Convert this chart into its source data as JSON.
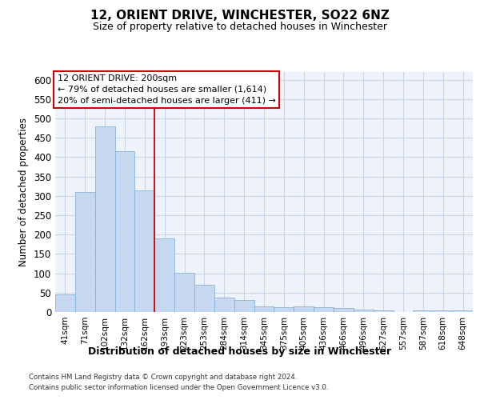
{
  "title1": "12, ORIENT DRIVE, WINCHESTER, SO22 6NZ",
  "title2": "Size of property relative to detached houses in Winchester",
  "xlabel": "Distribution of detached houses by size in Winchester",
  "ylabel": "Number of detached properties",
  "categories": [
    "41sqm",
    "71sqm",
    "102sqm",
    "132sqm",
    "162sqm",
    "193sqm",
    "223sqm",
    "253sqm",
    "284sqm",
    "314sqm",
    "345sqm",
    "375sqm",
    "405sqm",
    "436sqm",
    "466sqm",
    "496sqm",
    "527sqm",
    "557sqm",
    "587sqm",
    "618sqm",
    "648sqm"
  ],
  "values": [
    45,
    310,
    480,
    415,
    315,
    190,
    102,
    70,
    37,
    30,
    14,
    12,
    15,
    12,
    10,
    6,
    4,
    0,
    5,
    4,
    4
  ],
  "bar_facecolor": "#c5d8f0",
  "bar_edgecolor": "#7aaad4",
  "vline_index": 4.5,
  "vline_color": "#cc0000",
  "annotation_text": "12 ORIENT DRIVE: 200sqm\n← 79% of detached houses are smaller (1,614)\n20% of semi-detached houses are larger (411) →",
  "annotation_box_facecolor": "#ffffff",
  "annotation_box_edgecolor": "#cc0000",
  "ylim_max": 620,
  "yticks": [
    0,
    50,
    100,
    150,
    200,
    250,
    300,
    350,
    400,
    450,
    500,
    550,
    600
  ],
  "footer1": "Contains HM Land Registry data © Crown copyright and database right 2024.",
  "footer2": "Contains public sector information licensed under the Open Government Licence v3.0.",
  "plot_bg": "#eef2fa",
  "grid_color": "#c8d4e8"
}
